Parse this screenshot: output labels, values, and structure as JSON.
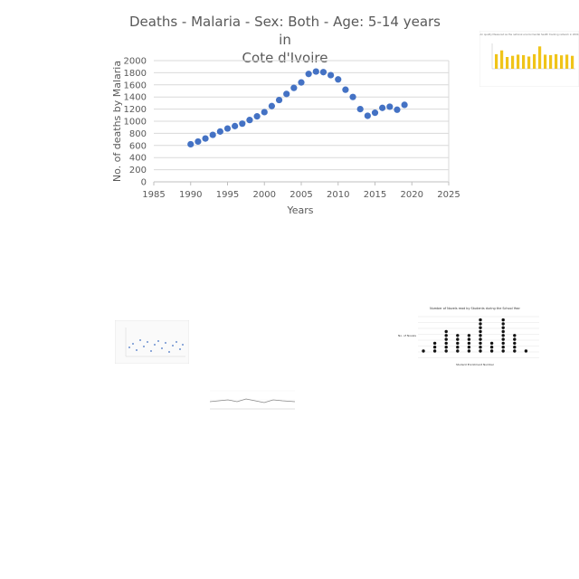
{
  "chart_data": {
    "type": "scatter",
    "title": "Deaths - Malaria - Sex: Both - Age: 5-14 years in Cote d'Ivoire",
    "title_lines": [
      "Deaths - Malaria - Sex: Both - Age: 5-14 years in",
      "Cote d'Ivoire"
    ],
    "xlabel": "Years",
    "ylabel": "No. of deaths by Malaria",
    "xlim": [
      1985,
      2025
    ],
    "ylim": [
      0,
      2000
    ],
    "xticks": [
      "1985",
      "1990",
      "1995",
      "2000",
      "2005",
      "2010",
      "2015",
      "2020",
      "2025"
    ],
    "yticks": [
      "0",
      "200",
      "400",
      "600",
      "800",
      "1000",
      "1200",
      "1400",
      "1600",
      "1800",
      "2000"
    ],
    "grid": true,
    "color": "#4472c4",
    "x": [
      1990,
      1991,
      1992,
      1993,
      1994,
      1995,
      1996,
      1997,
      1998,
      1999,
      2000,
      2001,
      2002,
      2003,
      2004,
      2005,
      2006,
      2007,
      2008,
      2009,
      2010,
      2011,
      2012,
      2013,
      2014,
      2015,
      2016,
      2017,
      2018,
      2019
    ],
    "y": [
      620,
      665,
      715,
      775,
      830,
      880,
      920,
      960,
      1020,
      1080,
      1150,
      1250,
      1350,
      1450,
      1550,
      1640,
      1780,
      1820,
      1810,
      1760,
      1690,
      1520,
      1400,
      1200,
      1090,
      1140,
      1220,
      1240,
      1190,
      1270
    ]
  },
  "thumbnails": {
    "thumb1_title": "Air quality Measured as the national environmental health tracking network in 2004",
    "thumb2_title": "Number of Novels read by Students during the School Year",
    "thumb2_xlabel": "Student Enrollment Number",
    "thumb2_ylabel": "No. of Novels",
    "colors": {
      "bars": "#f0c419",
      "dots": "#111111",
      "scatter": "#4472c4"
    }
  }
}
